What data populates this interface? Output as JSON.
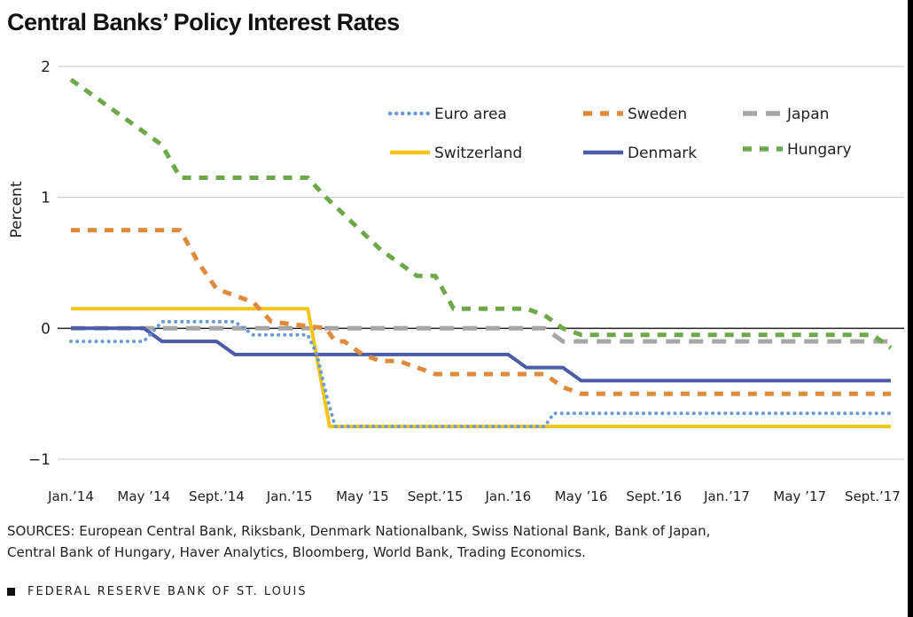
{
  "chart_data": {
    "type": "line",
    "title": "Central Banks’ Policy Interest Rates",
    "ylabel": "Percent",
    "xlabel": "",
    "ylim": [
      -1,
      2
    ],
    "yticks": [
      -1,
      0,
      1,
      2
    ],
    "ytick_labels": [
      "−1",
      "0",
      "1",
      "2"
    ],
    "xlim": [
      0,
      45
    ],
    "xticks": [
      0,
      4,
      8,
      12,
      16,
      20,
      24,
      28,
      32,
      36,
      40,
      44
    ],
    "xtick_labels": [
      "Jan.’14",
      "May ’14",
      "Sept.’14",
      "Jan.’15",
      "May ’15",
      "Sept.’15",
      "Jan.’16",
      "May ’16",
      "Sept.’16",
      "Jan.’17",
      "May ’17",
      "Sept.’17"
    ],
    "x_unit": "months since Jan. 2014",
    "grid": "horizontal",
    "legend_position": "top-right",
    "series": [
      {
        "name": "Euro area",
        "color": "#6b9bd1",
        "style": "dotted",
        "points": [
          [
            0,
            -0.1
          ],
          [
            4,
            -0.1
          ],
          [
            5,
            0.05
          ],
          [
            9,
            0.05
          ],
          [
            10,
            -0.05
          ],
          [
            13,
            -0.05
          ],
          [
            13.5,
            -0.2
          ],
          [
            14,
            -0.5
          ],
          [
            14.5,
            -0.75
          ],
          [
            26,
            -0.75
          ],
          [
            26.5,
            -0.65
          ],
          [
            45,
            -0.65
          ]
        ]
      },
      {
        "name": "Sweden",
        "color": "#e08a3c",
        "style": "dashed",
        "points": [
          [
            0,
            0.75
          ],
          [
            6,
            0.75
          ],
          [
            7,
            0.5
          ],
          [
            8,
            0.3
          ],
          [
            9,
            0.25
          ],
          [
            10,
            0.2
          ],
          [
            11,
            0.05
          ],
          [
            14,
            0
          ],
          [
            14.5,
            -0.1
          ],
          [
            15,
            -0.1
          ],
          [
            16,
            -0.2
          ],
          [
            17,
            -0.25
          ],
          [
            18,
            -0.25
          ],
          [
            19,
            -0.3
          ],
          [
            20,
            -0.35
          ],
          [
            26,
            -0.35
          ],
          [
            27,
            -0.45
          ],
          [
            28,
            -0.5
          ],
          [
            45,
            -0.5
          ]
        ]
      },
      {
        "name": "Japan",
        "color": "#a6a6a6",
        "style": "dashed-long",
        "points": [
          [
            0,
            0
          ],
          [
            26,
            0
          ],
          [
            27,
            -0.1
          ],
          [
            45,
            -0.1
          ]
        ]
      },
      {
        "name": "Switzerland",
        "color": "#f0c419",
        "style": "solid",
        "points": [
          [
            0,
            0.15
          ],
          [
            13,
            0.15
          ],
          [
            14.2,
            -0.75
          ],
          [
            45,
            -0.75
          ]
        ]
      },
      {
        "name": "Denmark",
        "color": "#4a5ba8",
        "style": "solid",
        "points": [
          [
            0,
            0
          ],
          [
            4,
            0
          ],
          [
            5,
            -0.1
          ],
          [
            8,
            -0.1
          ],
          [
            9,
            -0.2
          ],
          [
            24,
            -0.2
          ],
          [
            25,
            -0.3
          ],
          [
            27,
            -0.3
          ],
          [
            28,
            -0.4
          ],
          [
            45,
            -0.4
          ]
        ]
      },
      {
        "name": "Hungary",
        "color": "#6fa84a",
        "style": "dashed",
        "points": [
          [
            0,
            1.9
          ],
          [
            5,
            1.4
          ],
          [
            6,
            1.15
          ],
          [
            13,
            1.15
          ],
          [
            14,
            1.0
          ],
          [
            17,
            0.6
          ],
          [
            19,
            0.4
          ],
          [
            20,
            0.4
          ],
          [
            21,
            0.15
          ],
          [
            25,
            0.15
          ],
          [
            26,
            0.1
          ],
          [
            27,
            0.0
          ],
          [
            28,
            -0.05
          ],
          [
            44,
            -0.05
          ],
          [
            45,
            -0.15
          ]
        ]
      }
    ]
  },
  "sources_text_1": "SOURCES: European Central Bank, Riksbank, Denmark Nationalbank, Swiss National Bank, Bank of Japan,",
  "sources_text_2": "Central Bank of Hungary, Haver Analytics, Bloomberg, World Bank, Trading Economics.",
  "footer_text": "FEDERAL RESERVE BANK OF ST. LOUIS"
}
